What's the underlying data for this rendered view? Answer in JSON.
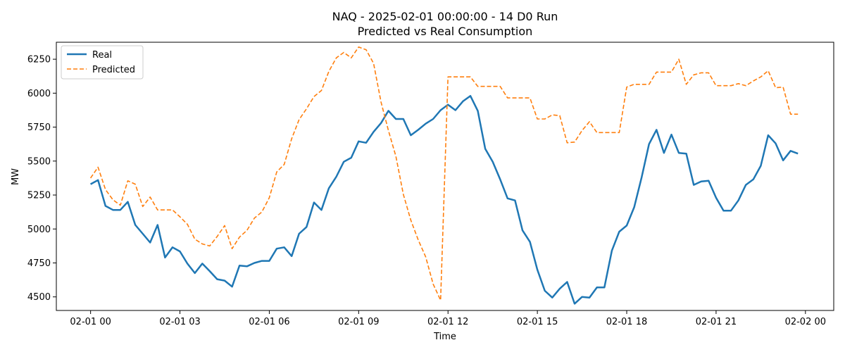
{
  "chart_data": {
    "type": "line",
    "title": "NAQ - 2025-02-01 00:00:00 - 14 D0 Run",
    "subtitle": "Predicted vs Real Consumption",
    "xlabel": "Time",
    "ylabel": "MW",
    "x_ticks": [
      {
        "hour": 0,
        "label": "02-01 00"
      },
      {
        "hour": 3,
        "label": "02-01 03"
      },
      {
        "hour": 6,
        "label": "02-01 06"
      },
      {
        "hour": 9,
        "label": "02-01 09"
      },
      {
        "hour": 12,
        "label": "02-01 12"
      },
      {
        "hour": 15,
        "label": "02-01 15"
      },
      {
        "hour": 18,
        "label": "02-01 18"
      },
      {
        "hour": 21,
        "label": "02-01 21"
      },
      {
        "hour": 24,
        "label": "02-02 00"
      }
    ],
    "y_ticks": [
      4500,
      4750,
      5000,
      5250,
      5500,
      5750,
      6000,
      6250
    ],
    "xlim": [
      -1.15,
      24.95
    ],
    "ylim": [
      4400,
      6375
    ],
    "grid": false,
    "legend_position": "top-left",
    "x": [
      0,
      0.25,
      0.5,
      0.75,
      1,
      1.25,
      1.5,
      1.75,
      2,
      2.25,
      2.5,
      2.75,
      3,
      3.25,
      3.5,
      3.75,
      4,
      4.25,
      4.5,
      4.75,
      5,
      5.25,
      5.5,
      5.75,
      6,
      6.25,
      6.5,
      6.75,
      7,
      7.25,
      7.5,
      7.75,
      8,
      8.25,
      8.5,
      8.75,
      9,
      9.25,
      9.5,
      9.75,
      10,
      10.25,
      10.5,
      10.75,
      11,
      11.25,
      11.5,
      11.75,
      12,
      12.25,
      12.5,
      12.75,
      13,
      13.25,
      13.5,
      13.75,
      14,
      14.25,
      14.5,
      14.75,
      15,
      15.25,
      15.5,
      15.75,
      16,
      16.25,
      16.5,
      16.75,
      17,
      17.25,
      17.5,
      17.75,
      18,
      18.25,
      18.5,
      18.75,
      19,
      19.25,
      19.5,
      19.75,
      20,
      20.25,
      20.5,
      20.75,
      21,
      21.25,
      21.5,
      21.75,
      22,
      22.25,
      22.5,
      22.75,
      23,
      23.25,
      23.5,
      23.75
    ],
    "series": [
      {
        "name": "Real",
        "color": "#1f77b4",
        "style": "solid",
        "values": [
          5330,
          5360,
          5170,
          5140,
          5140,
          5200,
          5030,
          4965,
          4900,
          5030,
          4790,
          4865,
          4835,
          4745,
          4675,
          4745,
          4690,
          4630,
          4620,
          4575,
          4730,
          4725,
          4750,
          4765,
          4765,
          4855,
          4865,
          4800,
          4965,
          5015,
          5195,
          5140,
          5300,
          5385,
          5495,
          5525,
          5645,
          5635,
          5715,
          5780,
          5870,
          5810,
          5810,
          5690,
          5730,
          5775,
          5810,
          5875,
          5915,
          5875,
          5940,
          5980,
          5870,
          5590,
          5495,
          5365,
          5225,
          5210,
          4990,
          4905,
          4700,
          4545,
          4495,
          4560,
          4610,
          4450,
          4500,
          4495,
          4570,
          4570,
          4840,
          4980,
          5025,
          5160,
          5380,
          5625,
          5730,
          5560,
          5695,
          5560,
          5555,
          5325,
          5350,
          5355,
          5230,
          5135,
          5135,
          5210,
          5325,
          5365,
          5465,
          5690,
          5630,
          5505,
          5575,
          5555
        ]
      },
      {
        "name": "Predicted",
        "color": "#ff7f0e",
        "style": "dashed",
        "values": [
          5375,
          5455,
          5290,
          5215,
          5175,
          5355,
          5330,
          5165,
          5235,
          5140,
          5140,
          5140,
          5090,
          5035,
          4925,
          4890,
          4875,
          4945,
          5025,
          4855,
          4940,
          4990,
          5080,
          5125,
          5230,
          5420,
          5475,
          5665,
          5805,
          5885,
          5975,
          6020,
          6160,
          6260,
          6300,
          6260,
          6340,
          6320,
          6220,
          5935,
          5725,
          5535,
          5255,
          5065,
          4920,
          4795,
          4595,
          4475,
          6120,
          6120,
          6120,
          6120,
          6050,
          6050,
          6050,
          6050,
          5965,
          5965,
          5965,
          5965,
          5810,
          5810,
          5840,
          5835,
          5635,
          5640,
          5725,
          5790,
          5710,
          5710,
          5710,
          5710,
          6045,
          6065,
          6065,
          6065,
          6155,
          6155,
          6155,
          6250,
          6065,
          6135,
          6150,
          6150,
          6055,
          6055,
          6055,
          6070,
          6055,
          6090,
          6120,
          6165,
          6040,
          6045,
          5845,
          5845
        ]
      }
    ]
  }
}
